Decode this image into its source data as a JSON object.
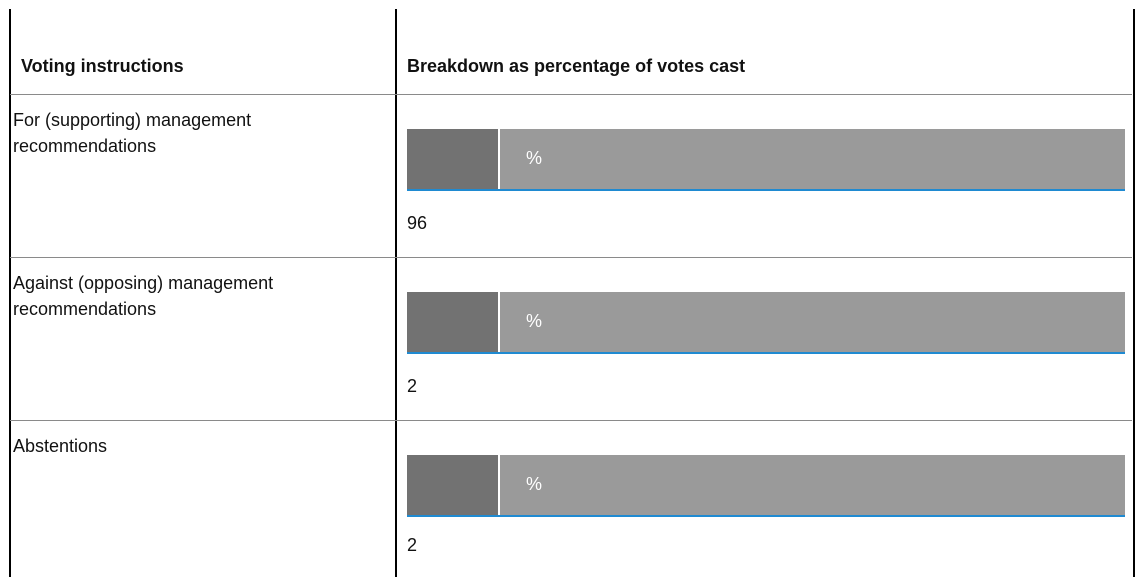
{
  "table": {
    "headers": {
      "voting_instructions": "Voting instructions",
      "breakdown": "Breakdown as percentage of votes cast"
    },
    "rows": [
      {
        "label": "For (supporting) management recommendations",
        "value": "96",
        "unit": "%"
      },
      {
        "label": "Against (opposing) management recommendations",
        "value": "2",
        "unit": "%"
      },
      {
        "label": "Abstentions",
        "value": "2",
        "unit": "%"
      }
    ]
  },
  "colors": {
    "bar_fill": "#9a9a9a",
    "bar_dark": "#727272",
    "bar_underline": "#1f8ad1"
  }
}
